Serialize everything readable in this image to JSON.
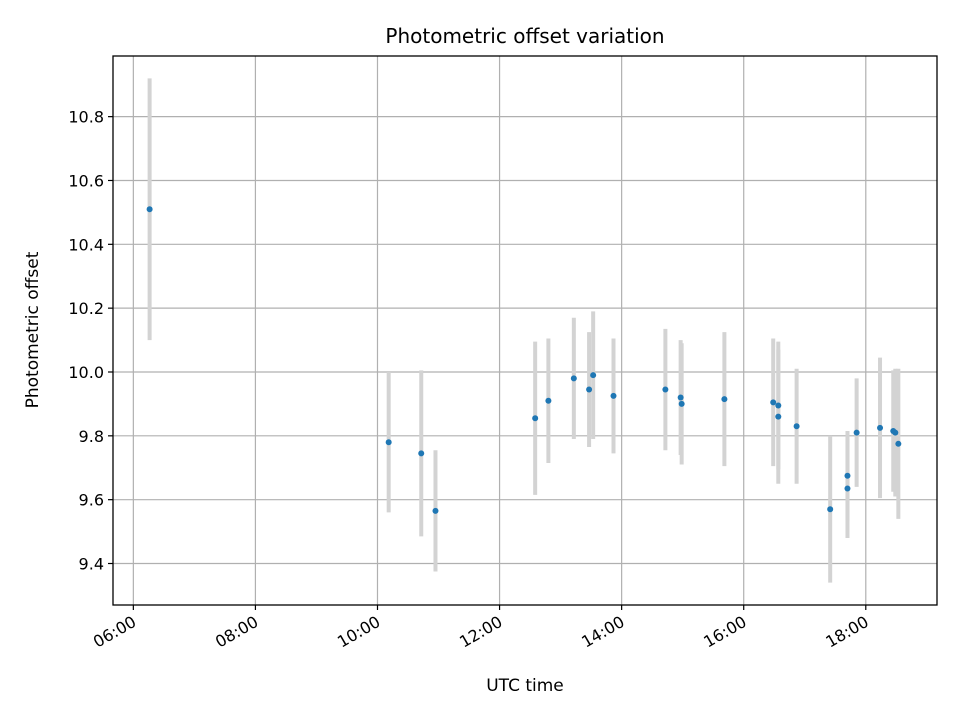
{
  "chart_data": {
    "type": "scatter",
    "title": "Photometric offset variation",
    "xlabel": "UTC time",
    "ylabel": "Photometric offset",
    "x_ticks": [
      "06:00",
      "08:00",
      "10:00",
      "12:00",
      "14:00",
      "16:00",
      "18:00"
    ],
    "y_ticks": [
      "9.4",
      "9.6",
      "9.8",
      "10.0",
      "10.2",
      "10.4",
      "10.6",
      "10.8"
    ],
    "xlim": [
      "05:40",
      "19:10"
    ],
    "ylim": [
      9.27,
      10.99
    ],
    "grid": true,
    "point_color": "#1f77b4",
    "errorbar_color": "#d3d3d3",
    "points": [
      {
        "x": "06:16",
        "y": 10.51,
        "yerr": 0.41
      },
      {
        "x": "10:11",
        "y": 9.78,
        "yerr": 0.22
      },
      {
        "x": "10:43",
        "y": 9.745,
        "yerr": 0.26
      },
      {
        "x": "10:57",
        "y": 9.565,
        "yerr": 0.19
      },
      {
        "x": "12:35",
        "y": 9.855,
        "yerr": 0.24
      },
      {
        "x": "12:48",
        "y": 9.91,
        "yerr": 0.195
      },
      {
        "x": "13:13",
        "y": 9.98,
        "yerr": 0.19
      },
      {
        "x": "13:28",
        "y": 9.945,
        "yerr": 0.18
      },
      {
        "x": "13:32",
        "y": 9.99,
        "yerr": 0.2
      },
      {
        "x": "13:52",
        "y": 9.925,
        "yerr": 0.18
      },
      {
        "x": "14:43",
        "y": 9.945,
        "yerr": 0.19
      },
      {
        "x": "14:58",
        "y": 9.92,
        "yerr": 0.18
      },
      {
        "x": "14:59",
        "y": 9.9,
        "yerr": 0.19
      },
      {
        "x": "15:41",
        "y": 9.915,
        "yerr": 0.21
      },
      {
        "x": "16:29",
        "y": 9.905,
        "yerr": 0.2
      },
      {
        "x": "16:34",
        "y": 9.895,
        "yerr": 0.2
      },
      {
        "x": "16:34",
        "y": 9.86,
        "yerr": 0.21
      },
      {
        "x": "16:52",
        "y": 9.83,
        "yerr": 0.18
      },
      {
        "x": "17:25",
        "y": 9.57,
        "yerr": 0.23
      },
      {
        "x": "17:42",
        "y": 9.675,
        "yerr": 0.14
      },
      {
        "x": "17:42",
        "y": 9.635,
        "yerr": 0.155
      },
      {
        "x": "17:51",
        "y": 9.81,
        "yerr": 0.17
      },
      {
        "x": "18:14",
        "y": 9.825,
        "yerr": 0.22
      },
      {
        "x": "18:27",
        "y": 9.815,
        "yerr": 0.19
      },
      {
        "x": "18:29",
        "y": 9.81,
        "yerr": 0.2
      },
      {
        "x": "18:32",
        "y": 9.775,
        "yerr": 0.235
      }
    ]
  }
}
